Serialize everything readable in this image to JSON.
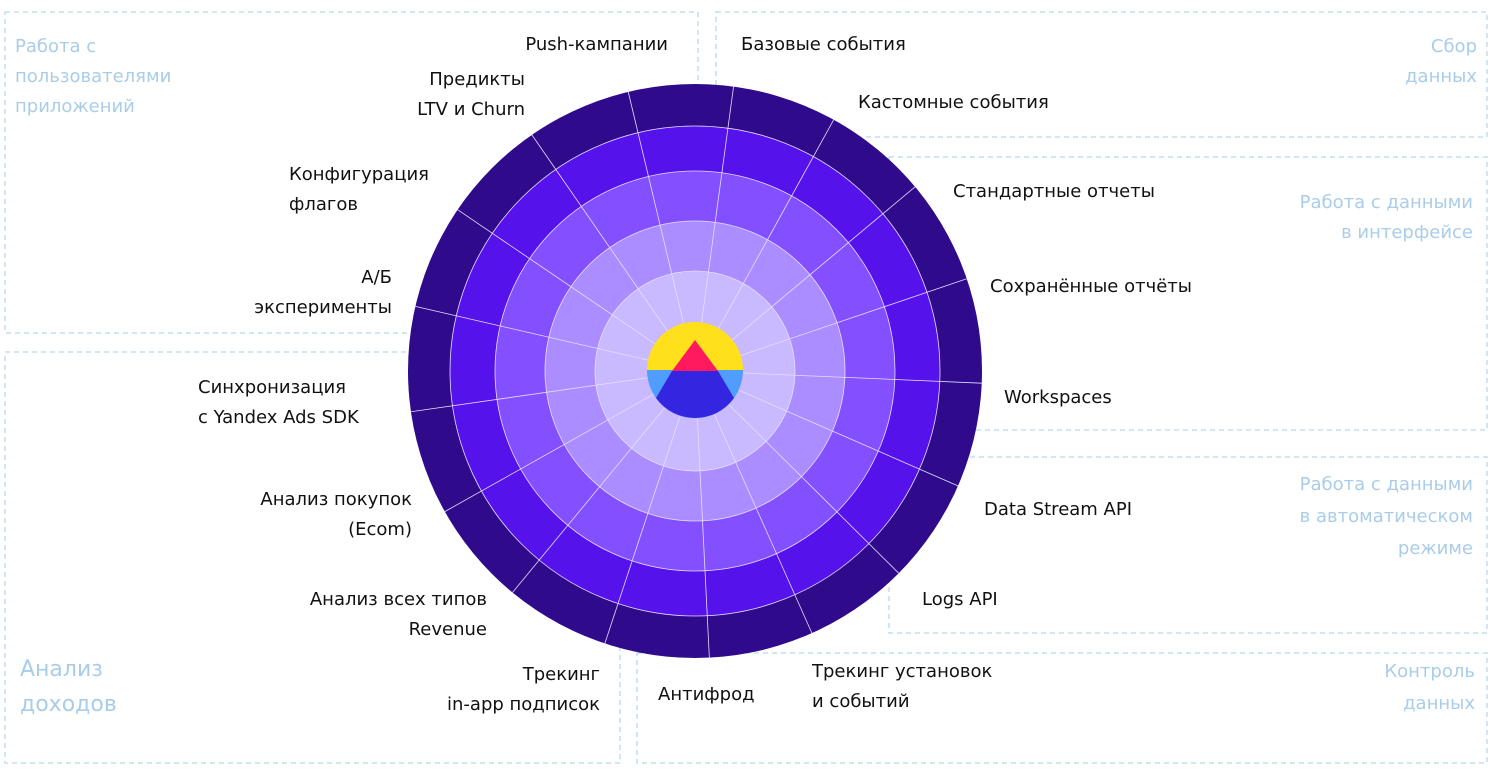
{
  "groups": [
    {
      "lines": [
        "Работа с",
        "пользователями",
        "приложений"
      ]
    },
    {
      "lines": [
        "Сбор",
        "данных"
      ]
    },
    {
      "lines": [
        "Работа с данными",
        "в интерфейсе"
      ]
    },
    {
      "lines": [
        "Работа с данными",
        "в автоматическом",
        "режиме"
      ]
    },
    {
      "lines": [
        "Анализ",
        "доходов"
      ]
    },
    {
      "lines": [
        "Контроль",
        "данных"
      ]
    }
  ],
  "features": [
    {
      "lines": [
        "Push-кампании"
      ]
    },
    {
      "lines": [
        "Базовые события"
      ]
    },
    {
      "lines": [
        "Кастомные события"
      ]
    },
    {
      "lines": [
        "Стандартные отчеты"
      ]
    },
    {
      "lines": [
        "Сохранённые отчёты"
      ]
    },
    {
      "lines": [
        "Workspaces"
      ]
    },
    {
      "lines": [
        "Data Stream API"
      ]
    },
    {
      "lines": [
        "Logs API"
      ]
    },
    {
      "lines": [
        "Трекинг установок",
        "и событий"
      ]
    },
    {
      "lines": [
        "Антифрод"
      ]
    },
    {
      "lines": [
        "Трекинг",
        "in-app подписок"
      ]
    },
    {
      "lines": [
        "Анализ всех типов",
        "Revenue"
      ]
    },
    {
      "lines": [
        "Анализ покупок",
        "(Ecom)"
      ]
    },
    {
      "lines": [
        "Синхронизация",
        "с Yandex Ads SDK"
      ]
    },
    {
      "lines": [
        "А/Б",
        "эксперименты"
      ]
    },
    {
      "lines": [
        "Конфигурация",
        "флагов"
      ]
    },
    {
      "lines": [
        "Предикты",
        "LTV и Churn"
      ]
    }
  ]
}
